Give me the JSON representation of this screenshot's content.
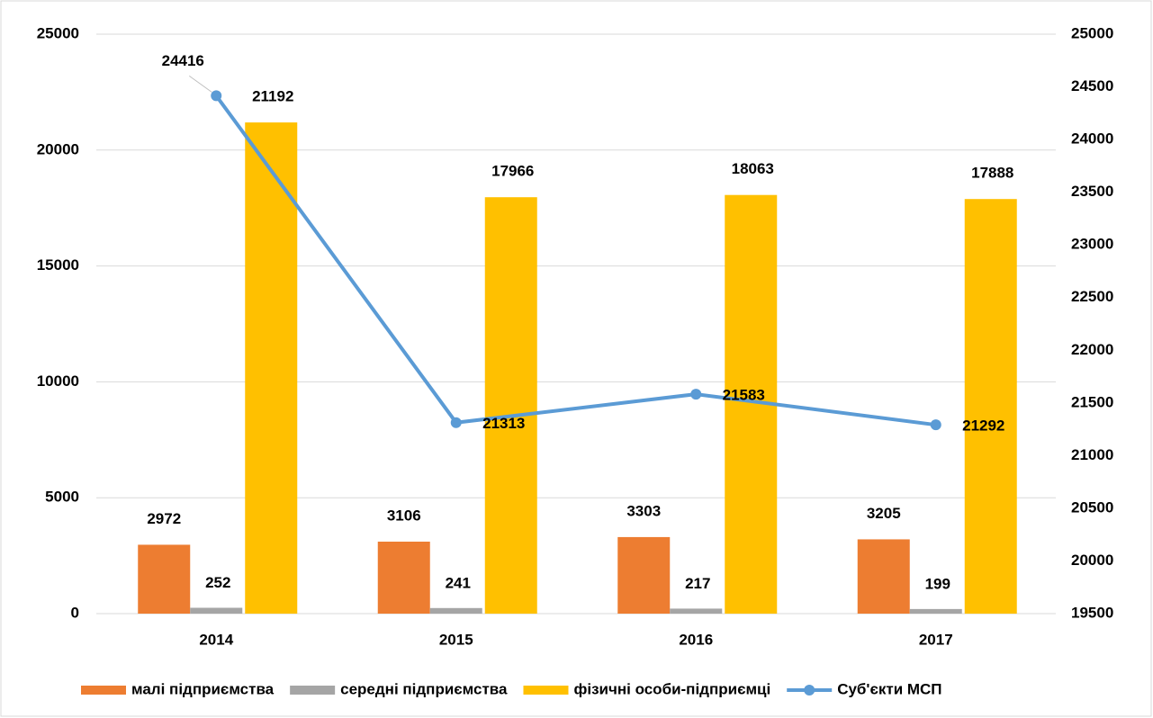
{
  "chart_data": {
    "type": "bar",
    "categories": [
      "2014",
      "2015",
      "2016",
      "2017"
    ],
    "series": [
      {
        "name": "малі підприємства",
        "color": "#ed7d31",
        "values": [
          2972,
          3106,
          3303,
          3205
        ]
      },
      {
        "name": "середні підприємства",
        "color": "#a5a5a5",
        "values": [
          252,
          241,
          217,
          199
        ]
      },
      {
        "name": "фізичні особи-підприємці",
        "color": "#ffc000",
        "values": [
          21192,
          17966,
          18063,
          17888
        ]
      },
      {
        "name": "Суб'єкти МСП",
        "color": "#5b9bd5",
        "type": "line",
        "axis": "y2",
        "values": [
          24416,
          21313,
          21583,
          21292
        ]
      }
    ],
    "ylim": [
      0,
      25000
    ],
    "yticks": [
      0,
      5000,
      10000,
      15000,
      20000,
      25000
    ],
    "y2lim": [
      19500,
      25000
    ],
    "y2ticks": [
      19500,
      20000,
      20500,
      21000,
      21500,
      22000,
      22500,
      23000,
      23500,
      24000,
      24500,
      25000
    ],
    "grid": true,
    "legend": "bottom"
  }
}
